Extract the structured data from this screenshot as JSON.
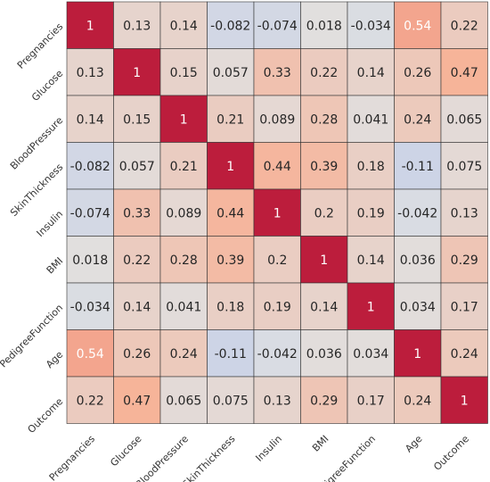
{
  "chart_data": {
    "type": "heatmap",
    "title": "",
    "xlabel": "",
    "ylabel": "",
    "variables": [
      "Pregnancies",
      "Glucose",
      "BloodPressure",
      "SkinThickness",
      "Insulin",
      "BMI",
      "PedigreeFunction",
      "Age",
      "Outcome"
    ],
    "matrix": [
      [
        1,
        0.13,
        0.14,
        -0.082,
        -0.074,
        0.018,
        -0.034,
        0.54,
        0.22
      ],
      [
        0.13,
        1,
        0.15,
        0.057,
        0.33,
        0.22,
        0.14,
        0.26,
        0.47
      ],
      [
        0.14,
        0.15,
        1,
        0.21,
        0.089,
        0.28,
        0.041,
        0.24,
        0.065
      ],
      [
        -0.082,
        0.057,
        0.21,
        1,
        0.44,
        0.39,
        0.18,
        -0.11,
        0.075
      ],
      [
        -0.074,
        0.33,
        0.089,
        0.44,
        1,
        0.2,
        0.19,
        -0.042,
        0.13
      ],
      [
        0.018,
        0.22,
        0.28,
        0.39,
        0.2,
        1,
        0.14,
        0.036,
        0.29
      ],
      [
        -0.034,
        0.14,
        0.041,
        0.18,
        0.19,
        0.14,
        1,
        0.034,
        0.17
      ],
      [
        0.54,
        0.26,
        0.24,
        -0.11,
        -0.042,
        0.036,
        0.034,
        1,
        0.24
      ],
      [
        0.22,
        0.47,
        0.065,
        0.075,
        0.13,
        0.29,
        0.17,
        0.24,
        1
      ]
    ],
    "value_range": [
      -1,
      1
    ],
    "colormap": "coolwarm",
    "colors": {
      "negative": "#3b4cc0",
      "neutral": "#dddddd",
      "positive": "#b40426",
      "cell_border": "#333333",
      "dark_text": "#262626",
      "light_text": "#ffffff"
    },
    "grid": true,
    "legend": "none"
  }
}
